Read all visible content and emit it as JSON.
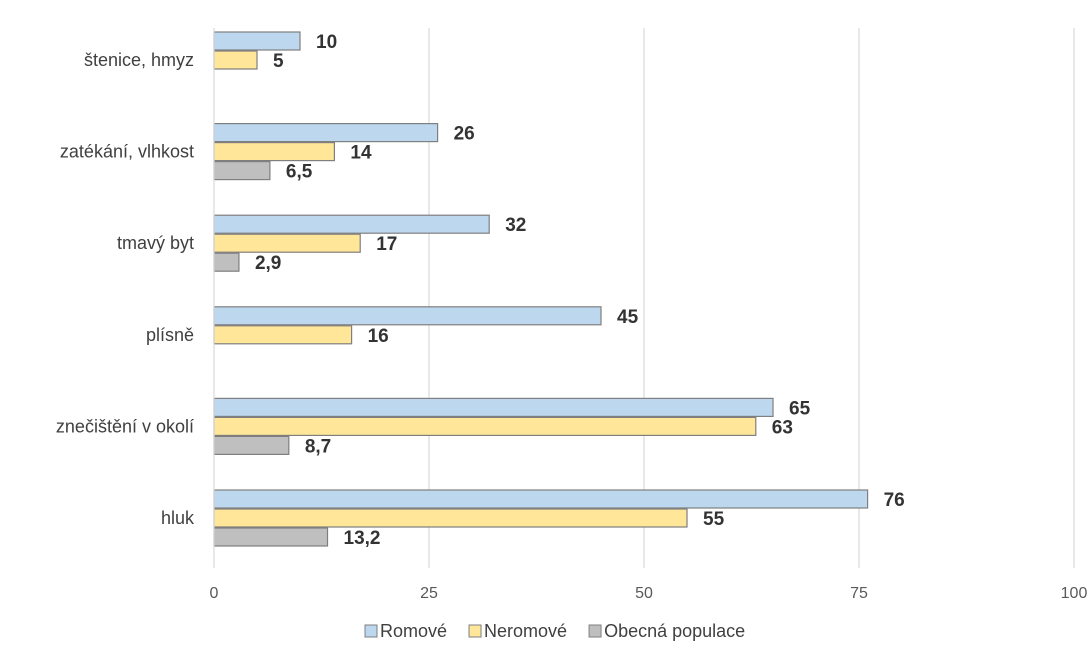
{
  "chart_data": {
    "type": "bar",
    "orientation": "horizontal",
    "categories": [
      "štenice, hmyz",
      "zatékání, vlhkost",
      "tmavý byt",
      "plísně",
      "znečištění v okolí",
      "hluk"
    ],
    "series": [
      {
        "name": "Romové",
        "color": "#BDD7EE",
        "values": [
          10,
          26,
          32,
          45,
          65,
          76
        ],
        "labels": [
          "10",
          "26",
          "32",
          "45",
          "65",
          "76"
        ]
      },
      {
        "name": "Neromové",
        "color": "#FFE699",
        "values": [
          5,
          14,
          17,
          16,
          63,
          55
        ],
        "labels": [
          "5",
          "14",
          "17",
          "16",
          "63",
          "55"
        ]
      },
      {
        "name": "Obecná populace",
        "color": "#BFBFBF",
        "values": [
          null,
          6.5,
          2.9,
          null,
          8.7,
          13.2
        ],
        "labels": [
          "",
          "6,5",
          "2,9",
          "",
          "8,7",
          "13,2"
        ]
      }
    ],
    "xlim": [
      0,
      100
    ],
    "xticks": [
      0,
      25,
      50,
      75,
      100
    ],
    "xtick_labels": [
      "0",
      "25",
      "50",
      "75",
      "100"
    ],
    "grid": "vertical",
    "legend_position": "bottom",
    "bar_outline_color": "#7F7F7F"
  }
}
